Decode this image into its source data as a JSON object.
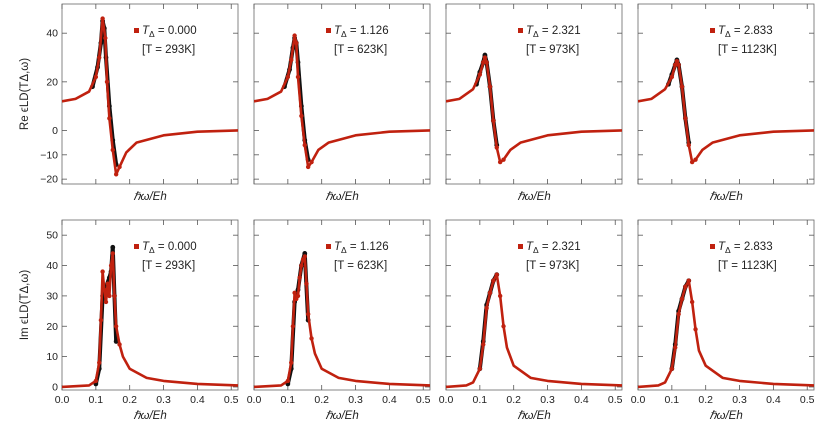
{
  "colors": {
    "simulation": "#c0210f",
    "reference": "#111111",
    "frame": "#666666"
  },
  "chart_data": [
    {
      "type": "line",
      "row": "re",
      "panel_index": 0,
      "t_delta_label": "T",
      "t_delta_sub": "Δ",
      "t_delta_value": "= 0.000",
      "temperature_label": "[T = 293K]",
      "ylabel": "Re ϵLD(TΔ,ω)",
      "xlabel": "ℏω/Eh",
      "ylim": [
        -22,
        52
      ],
      "xlim": [
        0,
        0.52
      ],
      "series": [
        {
          "name": "red",
          "x": [
            0,
            0.04,
            0.08,
            0.1,
            0.11,
            0.12,
            0.128,
            0.133,
            0.14,
            0.15,
            0.16,
            0.17,
            0.19,
            0.22,
            0.3,
            0.4,
            0.52
          ],
          "y": [
            12,
            13,
            16,
            22,
            30,
            46,
            38,
            20,
            5,
            -8,
            -18,
            -15,
            -9,
            -5,
            -2,
            -0.5,
            0
          ]
        },
        {
          "name": "black",
          "x": [
            0.09,
            0.105,
            0.115,
            0.12,
            0.125,
            0.13,
            0.14,
            0.15,
            0.16
          ],
          "y": [
            18,
            26,
            36,
            45,
            42,
            30,
            10,
            -4,
            -14
          ]
        }
      ]
    },
    {
      "type": "line",
      "row": "re",
      "panel_index": 1,
      "t_delta_label": "T",
      "t_delta_sub": "Δ",
      "t_delta_value": "= 1.126",
      "temperature_label": "[T = 623K]",
      "ylabel": "",
      "xlabel": "ℏω/Eh",
      "ylim": [
        -22,
        52
      ],
      "xlim": [
        0,
        0.52
      ],
      "series": [
        {
          "name": "red",
          "x": [
            0,
            0.04,
            0.08,
            0.1,
            0.11,
            0.12,
            0.125,
            0.13,
            0.14,
            0.15,
            0.16,
            0.17,
            0.19,
            0.22,
            0.3,
            0.4,
            0.52
          ],
          "y": [
            12,
            13,
            16,
            22,
            29,
            39,
            36,
            22,
            6,
            -6,
            -15,
            -13,
            -8,
            -5,
            -2,
            -0.5,
            0
          ]
        },
        {
          "name": "black",
          "x": [
            0.09,
            0.105,
            0.115,
            0.12,
            0.125,
            0.13,
            0.14,
            0.15,
            0.16
          ],
          "y": [
            18,
            25,
            34,
            38,
            36,
            28,
            10,
            -4,
            -12
          ]
        }
      ]
    },
    {
      "type": "line",
      "row": "re",
      "panel_index": 2,
      "t_delta_label": "T",
      "t_delta_sub": "Δ",
      "t_delta_value": "= 2.321",
      "temperature_label": "[T = 973K]",
      "ylabel": "",
      "xlabel": "ℏω/Eh",
      "ylim": [
        -22,
        52
      ],
      "xlim": [
        0,
        0.52
      ],
      "series": [
        {
          "name": "red",
          "x": [
            0,
            0.04,
            0.08,
            0.1,
            0.11,
            0.115,
            0.12,
            0.13,
            0.14,
            0.15,
            0.16,
            0.17,
            0.19,
            0.22,
            0.3,
            0.4,
            0.52
          ],
          "y": [
            12,
            13,
            17,
            23,
            28,
            30,
            28,
            18,
            4,
            -7,
            -13,
            -12,
            -8,
            -5,
            -2,
            -0.5,
            0
          ]
        },
        {
          "name": "black",
          "x": [
            0.09,
            0.1,
            0.11,
            0.115,
            0.12,
            0.13,
            0.14,
            0.15
          ],
          "y": [
            19,
            24,
            28,
            31,
            28,
            18,
            4,
            -6
          ]
        }
      ]
    },
    {
      "type": "line",
      "row": "re",
      "panel_index": 3,
      "t_delta_label": "T",
      "t_delta_sub": "Δ",
      "t_delta_value": "= 2.833",
      "temperature_label": "[T = 1123K]",
      "ylabel": "",
      "xlabel": "ℏω/Eh",
      "ylim": [
        -22,
        52
      ],
      "xlim": [
        0,
        0.52
      ],
      "series": [
        {
          "name": "red",
          "x": [
            0,
            0.04,
            0.08,
            0.1,
            0.11,
            0.115,
            0.12,
            0.13,
            0.14,
            0.15,
            0.16,
            0.17,
            0.19,
            0.22,
            0.3,
            0.4,
            0.52
          ],
          "y": [
            12,
            13,
            17,
            22,
            27,
            28.5,
            27,
            18,
            5,
            -6,
            -13,
            -12,
            -8,
            -5,
            -2,
            -0.5,
            0
          ]
        },
        {
          "name": "black",
          "x": [
            0.09,
            0.1,
            0.11,
            0.115,
            0.12,
            0.13,
            0.14,
            0.15
          ],
          "y": [
            19,
            23,
            27,
            29,
            27,
            18,
            5,
            -5
          ]
        }
      ]
    },
    {
      "type": "line",
      "row": "im",
      "panel_index": 0,
      "t_delta_label": "T",
      "t_delta_sub": "Δ",
      "t_delta_value": "= 0.000",
      "temperature_label": "[T = 293K]",
      "ylabel": "Im ϵLD(TΔ,ω)",
      "xlabel": "ℏω/Eh",
      "ylim": [
        -1,
        55
      ],
      "xlim": [
        0,
        0.52
      ],
      "x_ticks": [
        "0.0",
        "0.1",
        "0.2",
        "0.3",
        "0.4",
        "0.5"
      ],
      "series": [
        {
          "name": "red",
          "x": [
            0,
            0.08,
            0.1,
            0.11,
            0.115,
            0.12,
            0.125,
            0.13,
            0.135,
            0.14,
            0.145,
            0.15,
            0.155,
            0.16,
            0.17,
            0.18,
            0.2,
            0.25,
            0.3,
            0.4,
            0.52
          ],
          "y": [
            0,
            0.5,
            2,
            8,
            22,
            38,
            32,
            28,
            34,
            30,
            40,
            44,
            30,
            20,
            14,
            10,
            6,
            3,
            2,
            1,
            0.5
          ]
        },
        {
          "name": "black",
          "x": [
            0.1,
            0.11,
            0.12,
            0.13,
            0.14,
            0.145,
            0.15,
            0.155,
            0.16
          ],
          "y": [
            1,
            6,
            30,
            33,
            36,
            38,
            46,
            30,
            15
          ]
        }
      ]
    },
    {
      "type": "line",
      "row": "im",
      "panel_index": 1,
      "t_delta_label": "T",
      "t_delta_sub": "Δ",
      "t_delta_value": "= 1.126",
      "temperature_label": "[T = 623K]",
      "ylabel": "",
      "xlabel": "ℏω/Eh",
      "ylim": [
        -1,
        55
      ],
      "xlim": [
        0,
        0.52
      ],
      "x_ticks": [
        "0.0",
        "0.1",
        "0.2",
        "0.3",
        "0.4",
        "0.5"
      ],
      "series": [
        {
          "name": "red",
          "x": [
            0,
            0.08,
            0.1,
            0.11,
            0.115,
            0.12,
            0.125,
            0.13,
            0.135,
            0.14,
            0.145,
            0.15,
            0.155,
            0.16,
            0.17,
            0.18,
            0.2,
            0.25,
            0.3,
            0.4,
            0.52
          ],
          "y": [
            0,
            0.5,
            2,
            8,
            20,
            31,
            29,
            30,
            36,
            40,
            42,
            43,
            34,
            24,
            16,
            11,
            6,
            3,
            2,
            1,
            0.5
          ]
        },
        {
          "name": "black",
          "x": [
            0.1,
            0.11,
            0.12,
            0.13,
            0.14,
            0.15,
            0.16
          ],
          "y": [
            1,
            6,
            28,
            32,
            40,
            44,
            22
          ]
        }
      ]
    },
    {
      "type": "line",
      "row": "im",
      "panel_index": 2,
      "t_delta_label": "T",
      "t_delta_sub": "Δ",
      "t_delta_value": "= 2.321",
      "temperature_label": "[T = 973K]",
      "ylabel": "",
      "xlabel": "ℏω/Eh",
      "ylim": [
        -1,
        55
      ],
      "xlim": [
        0,
        0.52
      ],
      "x_ticks": [
        "0.0",
        "0.1",
        "0.2",
        "0.3",
        "0.4",
        "0.5"
      ],
      "series": [
        {
          "name": "red",
          "x": [
            0,
            0.06,
            0.08,
            0.1,
            0.11,
            0.12,
            0.13,
            0.14,
            0.15,
            0.16,
            0.17,
            0.18,
            0.2,
            0.25,
            0.3,
            0.4,
            0.52
          ],
          "y": [
            0,
            0.5,
            1.5,
            6,
            14,
            26,
            31,
            35,
            37,
            30,
            20,
            13,
            7,
            3,
            2,
            1,
            0.5
          ]
        },
        {
          "name": "black",
          "x": [
            0.1,
            0.11,
            0.12,
            0.13,
            0.14,
            0.15
          ],
          "y": [
            6,
            15,
            27,
            31,
            35,
            37
          ]
        }
      ]
    },
    {
      "type": "line",
      "row": "im",
      "panel_index": 3,
      "t_delta_label": "T",
      "t_delta_sub": "Δ",
      "t_delta_value": "= 2.833",
      "temperature_label": "[T = 1123K]",
      "ylabel": "",
      "xlabel": "ℏω/Eh",
      "ylim": [
        -1,
        55
      ],
      "xlim": [
        0,
        0.52
      ],
      "x_ticks": [
        "0.0",
        "0.1",
        "0.2",
        "0.3",
        "0.4",
        "0.5"
      ],
      "series": [
        {
          "name": "red",
          "x": [
            0,
            0.06,
            0.08,
            0.1,
            0.11,
            0.12,
            0.13,
            0.14,
            0.15,
            0.16,
            0.17,
            0.18,
            0.2,
            0.25,
            0.3,
            0.4,
            0.52
          ],
          "y": [
            0,
            0.5,
            1.5,
            6,
            13,
            24,
            29,
            33,
            35,
            28,
            19,
            12,
            7,
            3,
            2,
            1,
            0.5
          ]
        },
        {
          "name": "black",
          "x": [
            0.1,
            0.11,
            0.12,
            0.13,
            0.14,
            0.15
          ],
          "y": [
            6,
            14,
            25,
            29,
            33,
            35
          ]
        }
      ]
    }
  ],
  "axes": {
    "re_y_ticks": [
      "40",
      "20",
      "0",
      "−10",
      "−20"
    ],
    "im_y_ticks": [
      "50",
      "40",
      "30",
      "20",
      "10",
      "0"
    ]
  }
}
